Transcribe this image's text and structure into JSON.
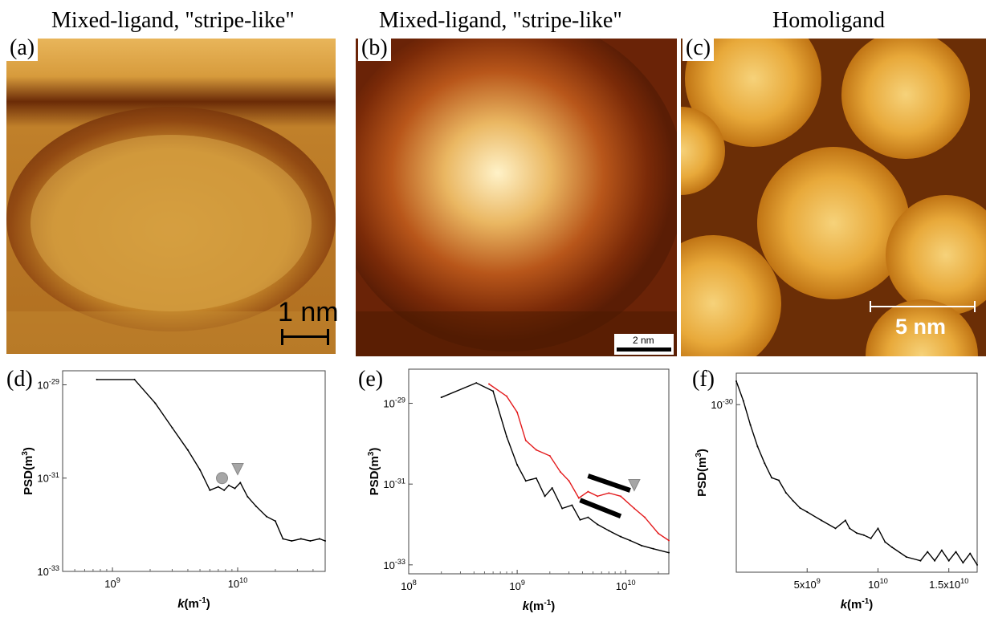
{
  "titles": {
    "a": "Mixed-ligand, \"stripe-like\"",
    "b": "Mixed-ligand, \"stripe-like\"",
    "c": "Homoligand"
  },
  "panel_labels": {
    "a": "(a)",
    "b": "(b)",
    "c": "(c)",
    "d": "(d)",
    "e": "(e)",
    "f": "(f)"
  },
  "scale_bars": {
    "a": "1 nm",
    "b": "2 nm",
    "c": "5 nm"
  },
  "colors": {
    "stm_dark": "#4a1a00",
    "stm_mid": "#b8650e",
    "stm_bright": "#f7dc8c",
    "series_black": "#000000",
    "series_red": "#e31a1c",
    "marker_gray": "#a6a6a6"
  },
  "chart_data": [
    {
      "id": "d",
      "type": "line",
      "xscale": "log",
      "yscale": "log",
      "xlim": [
        400000000.0,
        50000000000.0
      ],
      "ylim": [
        1e-33,
        2e-29
      ],
      "xlabel": "k(m-1)",
      "ylabel": "PSD(m3)",
      "xticks": [
        "10^9",
        "10^10"
      ],
      "yticks": [
        "10^-29",
        "10^-31",
        "10^-33"
      ],
      "markers": [
        {
          "shape": "circle",
          "x": 7500000000.0,
          "y": 1e-31
        },
        {
          "shape": "triangle",
          "x": 10000000000.0,
          "y": 1.5e-31
        }
      ],
      "series": [
        {
          "x": [
            750000000.0,
            1500000000.0,
            2200000000.0,
            3000000000.0,
            4000000000.0,
            5000000000.0,
            6000000000.0,
            7000000000.0,
            7800000000.0,
            8500000000.0,
            9500000000.0,
            10500000000.0,
            12000000000.0,
            14000000000.0,
            17000000000.0,
            20000000000.0,
            23000000000.0,
            27000000000.0,
            32000000000.0,
            38000000000.0,
            45000000000.0,
            50000000000.0
          ],
          "y": [
            1.3e-29,
            1.3e-29,
            4e-30,
            1.2e-30,
            4e-31,
            1.5e-31,
            5.5e-32,
            6.5e-32,
            5.5e-32,
            7e-32,
            6e-32,
            8e-32,
            4e-32,
            2.5e-32,
            1.5e-32,
            1.2e-32,
            5e-33,
            4.5e-33,
            5e-33,
            4.5e-33,
            5e-33,
            4.5e-33
          ]
        }
      ]
    },
    {
      "id": "e",
      "type": "line",
      "xscale": "log",
      "yscale": "log",
      "xlim": [
        100000000.0,
        25000000000.0
      ],
      "ylim": [
        6e-34,
        7e-29
      ],
      "xlabel": "k(m-1)",
      "ylabel": "PSD(m3)",
      "xticks": [
        "10^8",
        "10^9",
        "10^10"
      ],
      "yticks": [
        "10^-29",
        "10^-31",
        "10^-33"
      ],
      "markers": [
        {
          "shape": "triangle",
          "x": 12000000000.0,
          "y": 9e-32
        }
      ],
      "slope_lines": [
        {
          "x": [
            4500000000.0,
            11000000000.0
          ],
          "y": [
            1.6e-31,
            7e-32
          ]
        },
        {
          "x": [
            3800000000.0,
            9000000000.0
          ],
          "y": [
            4e-32,
            1.6e-32
          ]
        }
      ],
      "series": [
        {
          "color": "black",
          "x": [
            200000000.0,
            420000000.0,
            600000000.0,
            800000000.0,
            1000000000.0,
            1200000000.0,
            1500000000.0,
            1800000000.0,
            2100000000.0,
            2600000000.0,
            3200000000.0,
            3800000000.0,
            4500000000.0,
            5500000000.0,
            7000000000.0,
            9000000000.0,
            11000000000.0,
            14000000000.0,
            18000000000.0,
            25000000000.0
          ],
          "y": [
            1.4e-29,
            3.2e-29,
            2e-29,
            1.5e-30,
            3e-31,
            1.2e-31,
            1.4e-31,
            5e-32,
            8e-32,
            2.5e-32,
            3e-32,
            1.3e-32,
            1.5e-32,
            1e-32,
            7e-33,
            5e-33,
            4e-33,
            3e-33,
            2.5e-33,
            2e-33
          ]
        },
        {
          "color": "red",
          "x": [
            550000000.0,
            800000000.0,
            1000000000.0,
            1200000000.0,
            1500000000.0,
            2000000000.0,
            2500000000.0,
            3000000000.0,
            3700000000.0,
            4500000000.0,
            5500000000.0,
            7000000000.0,
            9000000000.0,
            12000000000.0,
            15000000000.0,
            20000000000.0,
            25000000000.0
          ],
          "y": [
            3e-29,
            1.5e-29,
            6e-30,
            1.2e-30,
            7e-31,
            5e-31,
            2e-31,
            1.2e-31,
            4.5e-32,
            6.5e-32,
            5e-32,
            6e-32,
            5e-32,
            2.5e-32,
            1.5e-32,
            6e-33,
            4e-33
          ]
        }
      ]
    },
    {
      "id": "f",
      "type": "line",
      "xscale": "linear",
      "yscale": "log",
      "xlim": [
        0,
        17000000000.0
      ],
      "ylim": [
        1.5e-32,
        2.2e-30
      ],
      "xlabel": "k(m-1)",
      "ylabel": "PSD(m3)",
      "xticks": [
        "5x10^9",
        "10^10",
        "1.5x10^10"
      ],
      "yticks": [
        "10^-30"
      ],
      "series": [
        {
          "x": [
            0,
            500000000.0,
            1000000000.0,
            1500000000.0,
            2000000000.0,
            2500000000.0,
            3000000000.0,
            3500000000.0,
            4000000000.0,
            4500000000.0,
            5000000000.0,
            6000000000.0,
            7000000000.0,
            7700000000.0,
            8000000000.0,
            8500000000.0,
            9000000000.0,
            9500000000.0,
            10000000000.0,
            10500000000.0,
            11000000000.0,
            12000000000.0,
            13000000000.0,
            13500000000.0,
            14000000000.0,
            14500000000.0,
            15000000000.0,
            15500000000.0,
            16000000000.0,
            16500000000.0,
            17000000000.0
          ],
          "y": [
            1.8e-30,
            1.1e-30,
            6e-31,
            3.5e-31,
            2.3e-31,
            1.6e-31,
            1.5e-31,
            1.1e-31,
            9e-32,
            7.5e-32,
            6.8e-32,
            5.5e-32,
            4.5e-32,
            5.5e-32,
            4.5e-32,
            4e-32,
            3.8e-32,
            3.5e-32,
            4.5e-32,
            3.2e-32,
            2.8e-32,
            2.2e-32,
            2e-32,
            2.5e-32,
            2e-32,
            2.6e-32,
            2e-32,
            2.5e-32,
            1.9e-32,
            2.4e-32,
            1.8e-32
          ]
        }
      ]
    }
  ]
}
